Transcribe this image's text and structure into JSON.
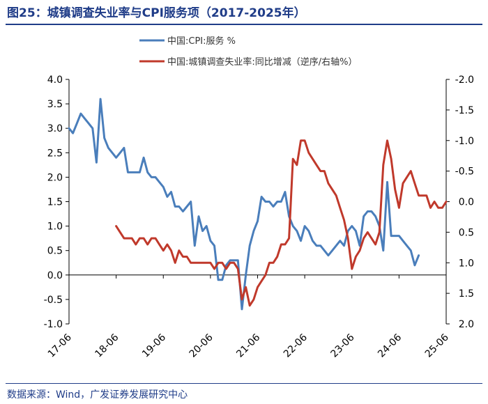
{
  "figure": {
    "title": "图25：城镇调查失业率与CPI服务项（2017-2025年）",
    "source": "数据来源：Wind，广发证券发展研究中心"
  },
  "chart_data": {
    "type": "line",
    "x_tick_labels": [
      "17-06",
      "18-06",
      "19-06",
      "20-06",
      "21-06",
      "22-06",
      "23-06",
      "24-06",
      "25-06"
    ],
    "x_range": [
      "2017-06",
      "2025-06"
    ],
    "y_left": {
      "ylim": [
        -1.0,
        4.0
      ],
      "ticks": [
        "4.0",
        "3.5",
        "3.0",
        "2.5",
        "2.0",
        "1.5",
        "1.0",
        "0.5",
        "0.0",
        "-0.5",
        "-1.0"
      ]
    },
    "y_right": {
      "ylim": [
        -2.0,
        2.0
      ],
      "inverted": true,
      "ticks": [
        "-2.0",
        "-1.5",
        "-1.0",
        "-0.5",
        "0.0",
        "0.5",
        "1.0",
        "1.5",
        "2.0"
      ]
    },
    "grid": false,
    "legend_position": "top",
    "series": [
      {
        "name": "中国:CPI:服务 %",
        "axis": "left",
        "color": "#4a7ebb",
        "points": [
          [
            "2017-06",
            3.0
          ],
          [
            "2017-07",
            2.9
          ],
          [
            "2017-08",
            3.1
          ],
          [
            "2017-09",
            3.3
          ],
          [
            "2017-10",
            3.2
          ],
          [
            "2017-11",
            3.1
          ],
          [
            "2017-12",
            3.0
          ],
          [
            "2018-01",
            2.3
          ],
          [
            "2018-02",
            3.6
          ],
          [
            "2018-03",
            2.8
          ],
          [
            "2018-04",
            2.6
          ],
          [
            "2018-05",
            2.5
          ],
          [
            "2018-06",
            2.4
          ],
          [
            "2018-07",
            2.5
          ],
          [
            "2018-08",
            2.6
          ],
          [
            "2018-09",
            2.1
          ],
          [
            "2018-10",
            2.1
          ],
          [
            "2018-11",
            2.1
          ],
          [
            "2018-12",
            2.1
          ],
          [
            "2019-01",
            2.4
          ],
          [
            "2019-02",
            2.1
          ],
          [
            "2019-03",
            2.0
          ],
          [
            "2019-04",
            2.0
          ],
          [
            "2019-05",
            1.9
          ],
          [
            "2019-06",
            1.8
          ],
          [
            "2019-07",
            1.6
          ],
          [
            "2019-08",
            1.7
          ],
          [
            "2019-09",
            1.4
          ],
          [
            "2019-10",
            1.4
          ],
          [
            "2019-11",
            1.3
          ],
          [
            "2019-12",
            1.4
          ],
          [
            "2020-01",
            1.5
          ],
          [
            "2020-02",
            0.6
          ],
          [
            "2020-03",
            1.2
          ],
          [
            "2020-04",
            0.9
          ],
          [
            "2020-05",
            1.0
          ],
          [
            "2020-06",
            0.7
          ],
          [
            "2020-07",
            0.6
          ],
          [
            "2020-08",
            -0.1
          ],
          [
            "2020-09",
            -0.1
          ],
          [
            "2020-10",
            0.2
          ],
          [
            "2020-11",
            0.3
          ],
          [
            "2020-12",
            0.3
          ],
          [
            "2021-01",
            0.3
          ],
          [
            "2021-02",
            -0.7
          ],
          [
            "2021-03",
            0.0
          ],
          [
            "2021-04",
            0.6
          ],
          [
            "2021-05",
            0.9
          ],
          [
            "2021-06",
            1.1
          ],
          [
            "2021-07",
            1.6
          ],
          [
            "2021-08",
            1.5
          ],
          [
            "2021-09",
            1.5
          ],
          [
            "2021-10",
            1.4
          ],
          [
            "2021-11",
            1.5
          ],
          [
            "2021-12",
            1.5
          ],
          [
            "2022-01",
            1.7
          ],
          [
            "2022-02",
            1.2
          ],
          [
            "2022-03",
            1.0
          ],
          [
            "2022-04",
            0.9
          ],
          [
            "2022-05",
            0.7
          ],
          [
            "2022-06",
            1.0
          ],
          [
            "2022-07",
            0.9
          ],
          [
            "2022-08",
            0.7
          ],
          [
            "2022-09",
            0.6
          ],
          [
            "2022-10",
            0.6
          ],
          [
            "2022-11",
            0.5
          ],
          [
            "2022-12",
            0.4
          ],
          [
            "2023-01",
            0.5
          ],
          [
            "2023-02",
            0.6
          ],
          [
            "2023-03",
            0.7
          ],
          [
            "2023-04",
            0.6
          ],
          [
            "2023-05",
            0.9
          ],
          [
            "2023-06",
            1.0
          ],
          [
            "2023-07",
            0.9
          ],
          [
            "2023-08",
            0.6
          ],
          [
            "2023-09",
            1.2
          ],
          [
            "2023-10",
            1.3
          ],
          [
            "2023-11",
            1.3
          ],
          [
            "2023-12",
            1.2
          ],
          [
            "2024-01",
            1.0
          ],
          [
            "2024-02",
            0.5
          ],
          [
            "2024-03",
            1.9
          ],
          [
            "2024-04",
            0.8
          ],
          [
            "2024-05",
            0.8
          ],
          [
            "2024-06",
            0.8
          ],
          [
            "2024-07",
            0.7
          ],
          [
            "2024-08",
            0.6
          ],
          [
            "2024-09",
            0.5
          ],
          [
            "2024-10",
            0.2
          ],
          [
            "2024-11",
            0.4
          ]
        ]
      },
      {
        "name": "中国:城镇调查失业率:同比增减（逆序/右轴%）",
        "axis": "right",
        "color": "#c0392b",
        "points": [
          [
            "2018-06",
            0.4
          ],
          [
            "2018-07",
            0.5
          ],
          [
            "2018-08",
            0.6
          ],
          [
            "2018-09",
            0.6
          ],
          [
            "2018-10",
            0.6
          ],
          [
            "2018-11",
            0.7
          ],
          [
            "2018-12",
            0.6
          ],
          [
            "2019-01",
            0.6
          ],
          [
            "2019-02",
            0.7
          ],
          [
            "2019-03",
            0.6
          ],
          [
            "2019-04",
            0.6
          ],
          [
            "2019-05",
            0.7
          ],
          [
            "2019-06",
            0.8
          ],
          [
            "2019-07",
            0.7
          ],
          [
            "2019-08",
            0.8
          ],
          [
            "2019-09",
            1.0
          ],
          [
            "2019-10",
            0.8
          ],
          [
            "2019-11",
            0.9
          ],
          [
            "2019-12",
            0.9
          ],
          [
            "2020-01",
            1.0
          ],
          [
            "2020-02",
            1.0
          ],
          [
            "2020-03",
            1.0
          ],
          [
            "2020-04",
            1.0
          ],
          [
            "2020-05",
            1.0
          ],
          [
            "2020-06",
            1.0
          ],
          [
            "2020-07",
            1.1
          ],
          [
            "2020-08",
            1.0
          ],
          [
            "2020-09",
            1.0
          ],
          [
            "2020-10",
            1.1
          ],
          [
            "2020-11",
            1.0
          ],
          [
            "2020-12",
            1.0
          ],
          [
            "2021-01",
            1.1
          ],
          [
            "2021-02",
            1.6
          ],
          [
            "2021-03",
            1.4
          ],
          [
            "2021-04",
            1.7
          ],
          [
            "2021-05",
            1.6
          ],
          [
            "2021-06",
            1.4
          ],
          [
            "2021-07",
            1.3
          ],
          [
            "2021-08",
            1.2
          ],
          [
            "2021-09",
            1.0
          ],
          [
            "2021-10",
            1.0
          ],
          [
            "2021-11",
            0.9
          ],
          [
            "2021-12",
            0.7
          ],
          [
            "2022-01",
            0.7
          ],
          [
            "2022-02",
            0.6
          ],
          [
            "2022-03",
            -0.7
          ],
          [
            "2022-04",
            -0.6
          ],
          [
            "2022-05",
            -1.0
          ],
          [
            "2022-06",
            -1.0
          ],
          [
            "2022-07",
            -0.8
          ],
          [
            "2022-08",
            -0.7
          ],
          [
            "2022-09",
            -0.6
          ],
          [
            "2022-10",
            -0.5
          ],
          [
            "2022-11",
            -0.5
          ],
          [
            "2022-12",
            -0.3
          ],
          [
            "2023-01",
            -0.2
          ],
          [
            "2023-02",
            -0.1
          ],
          [
            "2023-03",
            0.1
          ],
          [
            "2023-04",
            0.3
          ],
          [
            "2023-05",
            0.6
          ],
          [
            "2023-06",
            1.1
          ],
          [
            "2023-07",
            0.9
          ],
          [
            "2023-08",
            0.8
          ],
          [
            "2023-09",
            0.6
          ],
          [
            "2023-10",
            0.5
          ],
          [
            "2023-11",
            0.6
          ],
          [
            "2023-12",
            0.7
          ],
          [
            "2024-01",
            0.5
          ],
          [
            "2024-02",
            -0.6
          ],
          [
            "2024-03",
            -1.0
          ],
          [
            "2024-04",
            -0.7
          ],
          [
            "2024-05",
            -0.2
          ],
          [
            "2024-06",
            0.1
          ],
          [
            "2024-07",
            -0.3
          ],
          [
            "2024-08",
            -0.4
          ],
          [
            "2024-09",
            -0.5
          ],
          [
            "2024-10",
            -0.3
          ],
          [
            "2024-11",
            -0.1
          ],
          [
            "2024-12",
            -0.1
          ],
          [
            "2025-01",
            -0.1
          ],
          [
            "2025-02",
            0.1
          ],
          [
            "2025-03",
            0.0
          ],
          [
            "2025-04",
            0.1
          ],
          [
            "2025-05",
            0.1
          ],
          [
            "2025-06",
            0.0
          ]
        ]
      }
    ]
  }
}
